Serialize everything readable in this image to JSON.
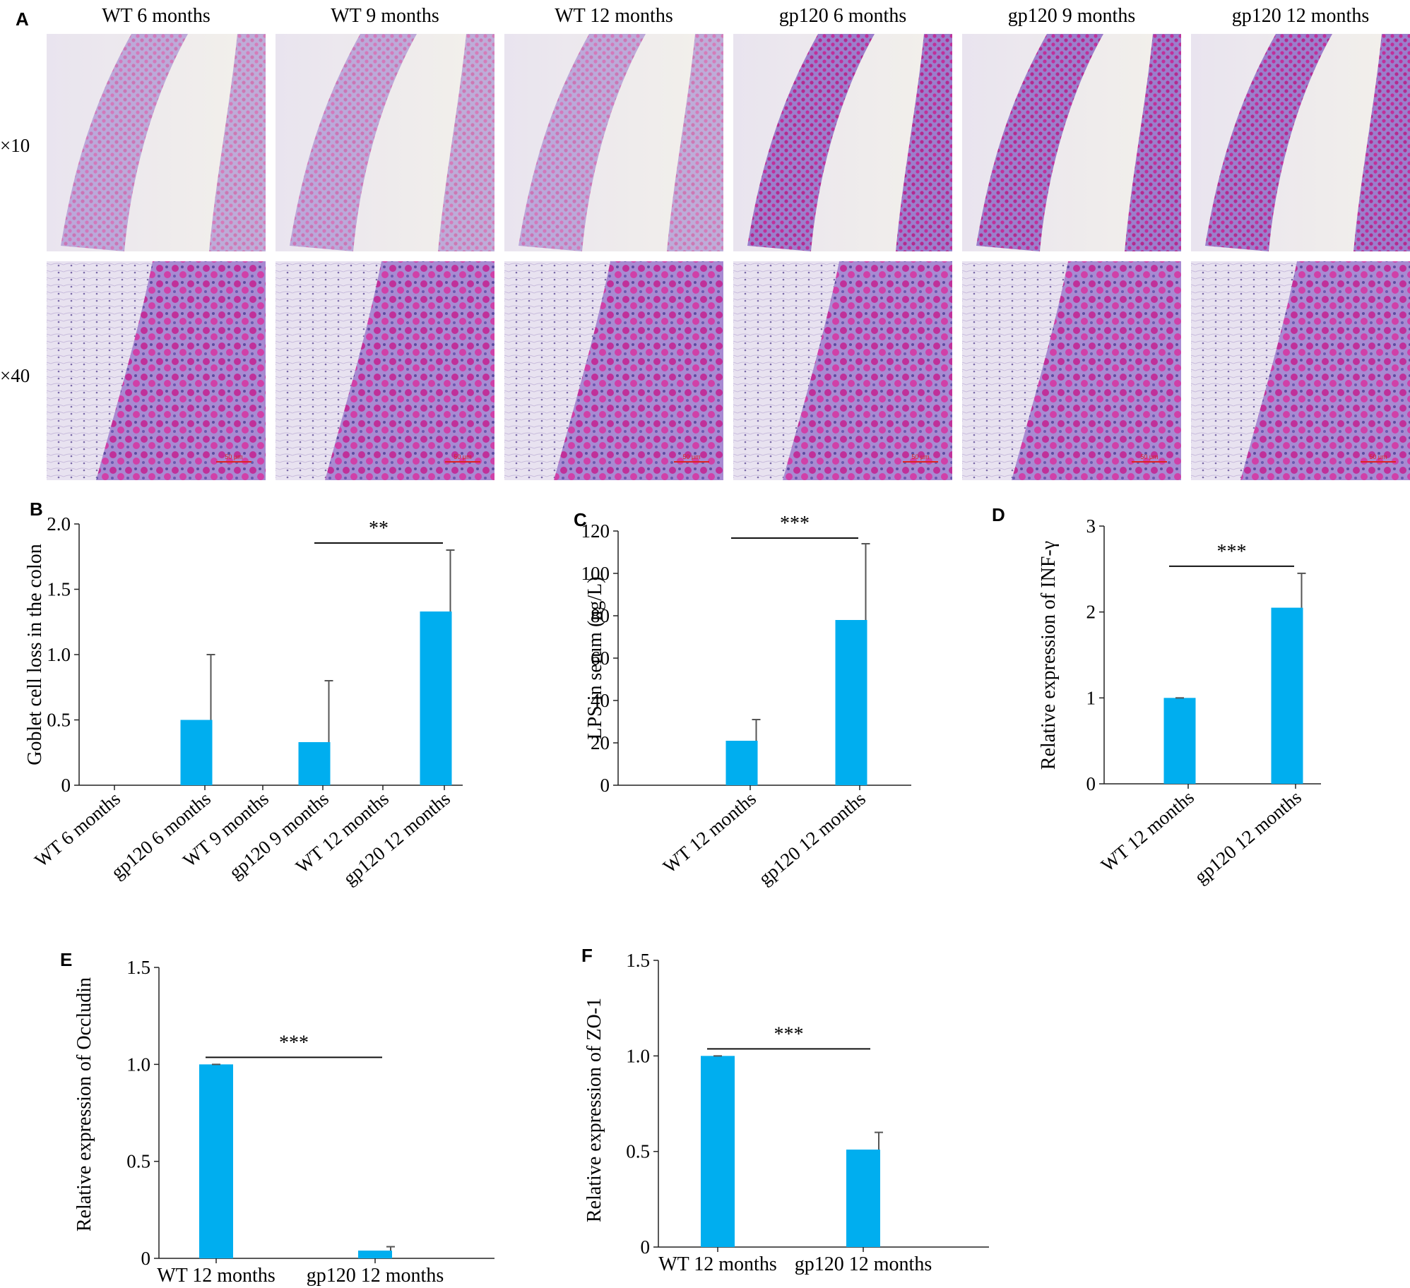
{
  "figure": {
    "panel_labels": [
      "A",
      "B",
      "C",
      "D",
      "E",
      "F"
    ],
    "column_headers": [
      "WT 6 months",
      "WT 9 months",
      "WT 12 months",
      "gp120 6 months",
      "gp120 9 months",
      "gp120 12 months"
    ],
    "row_labels": [
      "×10",
      "×40"
    ],
    "scale_bar_label": "50 μm"
  },
  "colors": {
    "bar": "#00aeef",
    "axis": "#222222",
    "tissue_pink": "#c0309a",
    "tissue_purple": "#8c6cc6"
  },
  "chart_data": [
    {
      "id": "B",
      "type": "bar",
      "categories": [
        "WT 6 months",
        "gp120 6 months",
        "WT 9 months",
        "gp120 9 months",
        "WT 12 months",
        "gp120 12 months"
      ],
      "values": [
        0,
        0.5,
        0,
        0.33,
        0,
        1.33
      ],
      "errors": [
        0,
        0.5,
        0,
        0.47,
        0,
        0.47
      ],
      "ylabel": "Goblet cell loss in the colon",
      "ylim": [
        0,
        2.0
      ],
      "yticks": [
        "0",
        "0.5",
        "1.0",
        "1.5",
        "2.0"
      ],
      "significance": {
        "label": "**",
        "from": "gp120 9 months",
        "to": "gp120 12 months"
      }
    },
    {
      "id": "C",
      "type": "bar",
      "categories": [
        "WT 12 months",
        "gp120 12 months"
      ],
      "values": [
        21,
        78
      ],
      "errors": [
        10,
        36
      ],
      "ylabel": "LPS in serum (ng/L)",
      "ylim": [
        0,
        120
      ],
      "yticks": [
        "0",
        "20",
        "40",
        "60",
        "80",
        "100",
        "120"
      ],
      "significance": {
        "label": "***",
        "from": "WT 12 months",
        "to": "gp120 12 months"
      }
    },
    {
      "id": "D",
      "type": "bar",
      "categories": [
        "WT 12 months",
        "gp120 12 months"
      ],
      "values": [
        1.0,
        2.05
      ],
      "errors": [
        0,
        0.4
      ],
      "ylabel": "Relative expression of INF-γ",
      "ylim": [
        0,
        3
      ],
      "yticks": [
        "0",
        "1",
        "2",
        "3"
      ],
      "significance": {
        "label": "***",
        "from": "WT 12 months",
        "to": "gp120 12 months"
      }
    },
    {
      "id": "E",
      "type": "bar",
      "categories": [
        "WT 12 months",
        "gp120 12 months"
      ],
      "values": [
        1.0,
        0.04
      ],
      "errors": [
        0,
        0.02
      ],
      "ylabel": "Relative expression of Occludin",
      "ylim": [
        0,
        1.5
      ],
      "yticks": [
        "0",
        "0.5",
        "1.0",
        "1.5"
      ],
      "significance": {
        "label": "***",
        "from": "WT 12 months",
        "to": "gp120 12 months"
      }
    },
    {
      "id": "F",
      "type": "bar",
      "categories": [
        "WT 12 months",
        "gp120 12 months"
      ],
      "values": [
        1.0,
        0.51
      ],
      "errors": [
        0,
        0.09
      ],
      "ylabel": "Relative expression of ZO-1",
      "ylim": [
        0,
        1.5
      ],
      "yticks": [
        "0",
        "0.5",
        "1.0",
        "1.5"
      ],
      "significance": {
        "label": "***",
        "from": "WT 12 months",
        "to": "gp120 12 months"
      }
    }
  ]
}
